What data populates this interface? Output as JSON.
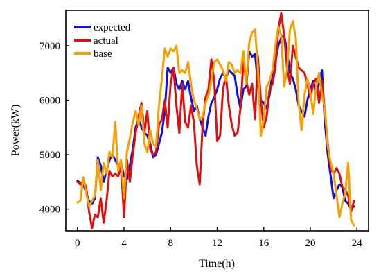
{
  "chart_data": {
    "type": "line",
    "xlabel": "Time(h)",
    "ylabel": "Power(kW)",
    "xlim": [
      -1,
      25
    ],
    "ylim": [
      3600,
      7650
    ],
    "xticks": [
      0,
      4,
      8,
      12,
      16,
      20,
      24
    ],
    "yticks": [
      4000,
      5000,
      6000,
      7000
    ],
    "legend_position": "top-left",
    "x_step": 0.25,
    "series": [
      {
        "name": "expected",
        "color": "#1010e0",
        "values": [
          4520,
          4480,
          4460,
          4300,
          4150,
          4100,
          4200,
          4950,
          4800,
          4500,
          4700,
          4900,
          5000,
          4900,
          4800,
          4850,
          4600,
          4550,
          4800,
          5100,
          5500,
          5650,
          5500,
          5400,
          5350,
          5200,
          4950,
          5000,
          5200,
          5400,
          5800,
          6600,
          6500,
          6600,
          6300,
          6200,
          6350,
          6200,
          6350,
          6050,
          5800,
          5900,
          5650,
          5500,
          5350,
          5700,
          5950,
          6050,
          6200,
          6400,
          6500,
          6400,
          6550,
          6500,
          6450,
          6100,
          5850,
          6200,
          6250,
          6900,
          6800,
          6850,
          6300,
          6000,
          5950,
          5850,
          6100,
          6500,
          6700,
          7000,
          7150,
          7200,
          6900,
          6500,
          6400,
          6200,
          5900,
          5800,
          5700,
          6000,
          6200,
          6350,
          6150,
          6300,
          6550,
          5600,
          5000,
          4600,
          4200,
          4350,
          4450,
          4400,
          4150,
          4100,
          4000,
          4050
        ]
      },
      {
        "name": "actual",
        "color": "#e01010",
        "values": [
          4500,
          4450,
          4520,
          4400,
          3950,
          3650,
          3900,
          3850,
          4200,
          3750,
          4150,
          4700,
          4600,
          4650,
          4600,
          4800,
          3850,
          4900,
          4500,
          5000,
          5400,
          5700,
          5950,
          5400,
          5800,
          5100,
          5000,
          5050,
          5550,
          5650,
          6000,
          5500,
          6300,
          6600,
          5900,
          5400,
          6300,
          5600,
          5500,
          5900,
          5600,
          4800,
          4450,
          5550,
          6050,
          6200,
          6750,
          6350,
          5250,
          5350,
          6200,
          6450,
          5900,
          5550,
          5350,
          5400,
          5850,
          6700,
          6350,
          6100,
          6300,
          5650,
          6800,
          6000,
          5500,
          5700,
          6200,
          6300,
          6600,
          7300,
          7600,
          7200,
          6600,
          6300,
          7000,
          6800,
          6600,
          6550,
          6500,
          6300,
          6050,
          6300,
          6400,
          5950,
          6350,
          5800,
          5200,
          4750,
          4650,
          4750,
          4650,
          4400,
          4350,
          4250,
          3950,
          4150
        ]
      },
      {
        "name": "base",
        "color": "#f5a000",
        "values": [
          4120,
          4150,
          4580,
          4300,
          4050,
          4150,
          4250,
          4900,
          4350,
          4850,
          4650,
          5050,
          4950,
          5600,
          4700,
          4900,
          4200,
          5050,
          5300,
          5600,
          5800,
          5550,
          5900,
          5200,
          5050,
          5450,
          5200,
          5150,
          5900,
          6400,
          6950,
          6800,
          6950,
          6900,
          7000,
          6500,
          6550,
          6500,
          6700,
          6300,
          6000,
          5850,
          5650,
          5700,
          5950,
          6100,
          6350,
          6700,
          6750,
          6650,
          6550,
          6350,
          6700,
          6650,
          6500,
          6550,
          6500,
          6900,
          6300,
          7050,
          7250,
          7300,
          6600,
          5350,
          5650,
          6250,
          6350,
          6550,
          7000,
          7350,
          7200,
          6250,
          6550,
          7300,
          7450,
          7150,
          5950,
          5450,
          6100,
          6400,
          6150,
          5750,
          6250,
          6500,
          6100,
          5850,
          5150,
          4850,
          4650,
          4250,
          3850,
          4100,
          4300,
          4850,
          3800,
          3700
        ]
      }
    ]
  }
}
